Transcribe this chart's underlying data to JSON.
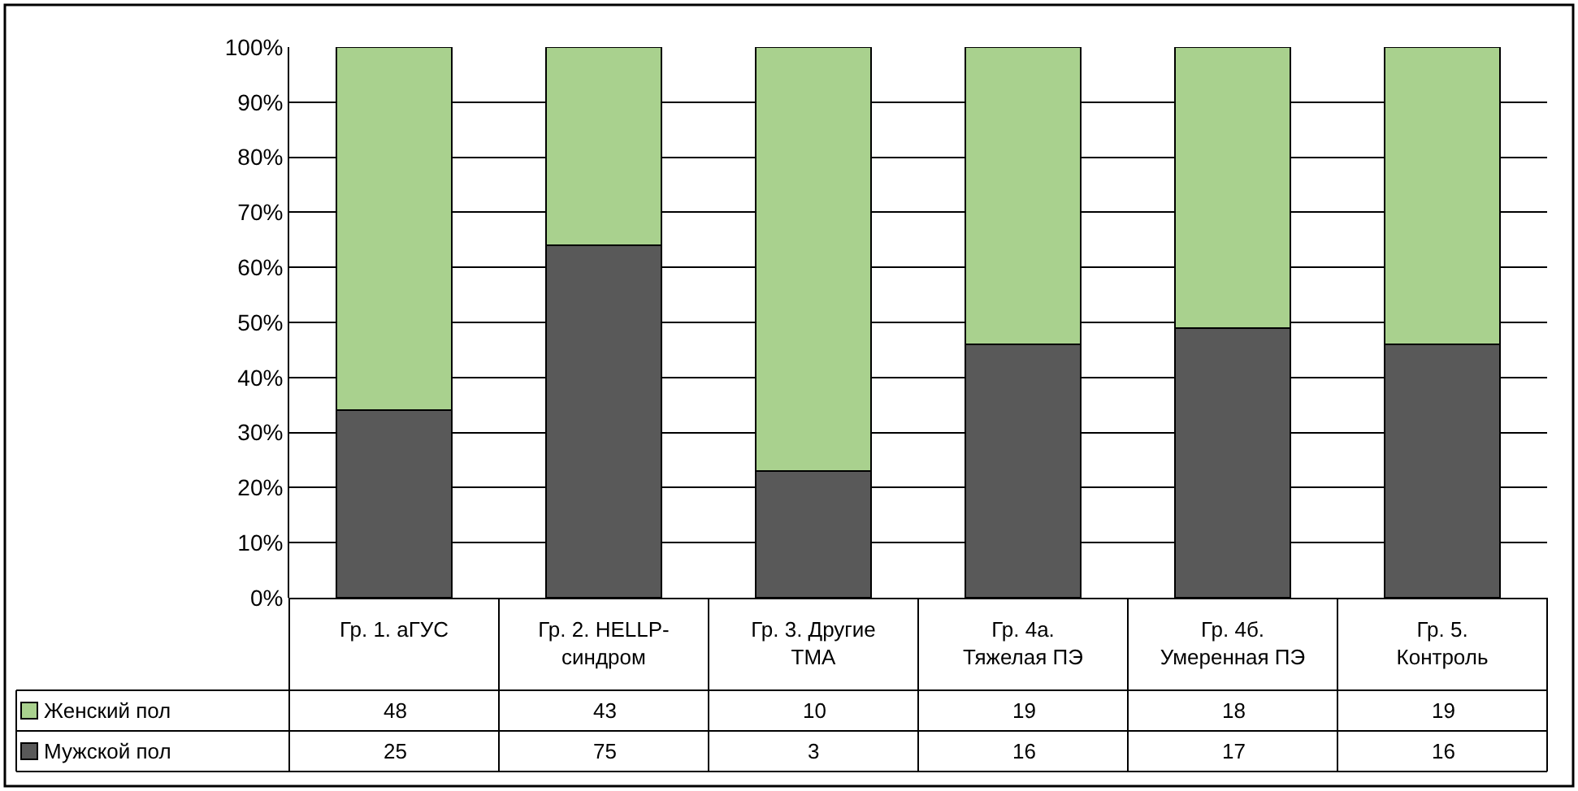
{
  "chart_data": [
    {
      "type": "bar",
      "stacked": true,
      "categories": [
        "Гр. 1. аГУС",
        "Гр. 2. HELLP-синдром",
        "Гр. 3. Другие ТМА",
        "Гр. 4а. Тяжелая ПЭ",
        "Гр. 4б. Умеренная ПЭ",
        "Гр. 5. Контроль"
      ],
      "series": [
        {
          "color": "#595959",
          "values": [
            34,
            64,
            23,
            46,
            49,
            46
          ]
        },
        {
          "color": "#a9d18e",
          "values": [
            66,
            36,
            77,
            54,
            51,
            54
          ]
        }
      ],
      "ylim": [
        0,
        100
      ],
      "yticks": [
        {
          "value": 0,
          "label": "0%"
        },
        {
          "value": 10,
          "label": "10%"
        },
        {
          "value": 20,
          "label": "20%"
        },
        {
          "value": 30,
          "label": "30%"
        },
        {
          "value": 40,
          "label": "40%"
        },
        {
          "value": 50,
          "label": "50%"
        },
        {
          "value": 60,
          "label": "60%"
        },
        {
          "value": 70,
          "label": "70%"
        },
        {
          "value": 80,
          "label": "80%"
        },
        {
          "value": 90,
          "label": "90%"
        },
        {
          "value": 100,
          "label": "100%"
        }
      ],
      "grid": "y"
    },
    {
      "type": "other",
      "series": [
        {
          "name": "Женский пол",
          "color": "#a9d18e"
        },
        {
          "name": "Мужской пол",
          "color": "#595959"
        }
      ],
      "annotations": [
        "48",
        "43",
        "10",
        "19",
        "18",
        "19",
        "25",
        "75",
        "3",
        "16",
        "17",
        "16"
      ]
    }
  ]
}
